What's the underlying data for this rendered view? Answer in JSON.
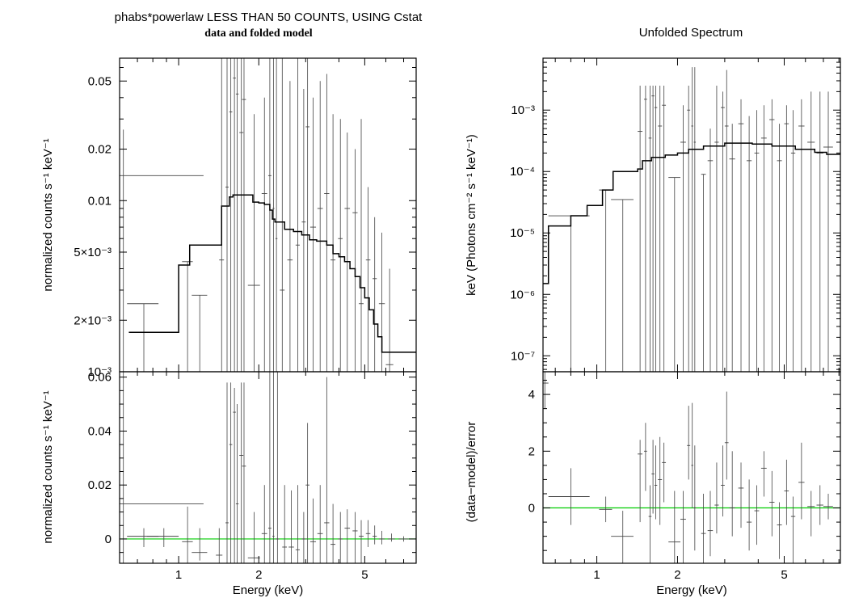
{
  "figure": {
    "left_title": "phabs*powerlaw LESS THAN 50 COUNTS, USING Cstat",
    "left_subtitle": "data and folded model",
    "right_title": "Unfolded Spectrum",
    "colors": {
      "axes": "#000000",
      "data": "#444444",
      "model": "#000000",
      "zero_line": "#00cc00"
    }
  },
  "chart_data": [
    {
      "panel": "left-top",
      "type": "line",
      "xlabel": "",
      "ylabel": "normalized counts s⁻¹ keV⁻¹",
      "xscale": "log",
      "yscale": "log",
      "xlim": [
        0.6,
        7.8
      ],
      "ylim": [
        0.001,
        0.068
      ],
      "xticks": [
        1,
        2,
        5
      ],
      "xtick_labels": [
        "",
        "",
        ""
      ],
      "yticks": [
        0.001,
        0.002,
        0.005,
        0.01,
        0.02,
        0.05
      ],
      "ytick_labels": [
        "10⁻³",
        "2×10⁻³",
        "5×10⁻³",
        "0.01",
        "0.02",
        "0.05"
      ],
      "model_steps": [
        [
          0.65,
          0.0017
        ],
        [
          0.8,
          0.0017
        ],
        [
          1.0,
          0.0042
        ],
        [
          1.1,
          0.0055
        ],
        [
          1.3,
          0.0055
        ],
        [
          1.45,
          0.0093
        ],
        [
          1.55,
          0.0105
        ],
        [
          1.6,
          0.0108
        ],
        [
          1.7,
          0.0108
        ],
        [
          1.8,
          0.0108
        ],
        [
          1.9,
          0.0098
        ],
        [
          2.0,
          0.0097
        ],
        [
          2.1,
          0.0095
        ],
        [
          2.2,
          0.0088
        ],
        [
          2.25,
          0.0078
        ],
        [
          2.3,
          0.0075
        ],
        [
          2.5,
          0.0068
        ],
        [
          2.7,
          0.0066
        ],
        [
          2.9,
          0.0063
        ],
        [
          3.1,
          0.0059
        ],
        [
          3.3,
          0.0058
        ],
        [
          3.6,
          0.0055
        ],
        [
          3.8,
          0.0049
        ],
        [
          4.0,
          0.0047
        ],
        [
          4.2,
          0.0044
        ],
        [
          4.4,
          0.004
        ],
        [
          4.6,
          0.0036
        ],
        [
          4.8,
          0.0031
        ],
        [
          5.0,
          0.0027
        ],
        [
          5.2,
          0.0023
        ],
        [
          5.4,
          0.0019
        ],
        [
          5.6,
          0.0016
        ],
        [
          5.8,
          0.0013
        ],
        [
          6.1,
          0.0013
        ]
      ],
      "points": [
        [
          0.62,
          0.62,
          0.014,
          0.001,
          0.026
        ],
        [
          0.74,
          0.1,
          0.0025,
          0.001,
          0.0025
        ],
        [
          1.08,
          0.05,
          0.0044,
          0.001,
          0.0044
        ],
        [
          1.2,
          0.08,
          0.0028,
          0.001,
          0.0028
        ],
        [
          1.45,
          0.03,
          0.0045,
          0.001,
          0.068
        ],
        [
          1.52,
          0.02,
          0.012,
          0.001,
          0.068
        ],
        [
          1.57,
          0.02,
          0.033,
          0.001,
          0.068
        ],
        [
          1.62,
          0.02,
          0.052,
          0.001,
          0.068
        ],
        [
          1.66,
          0.02,
          0.042,
          0.001,
          0.068
        ],
        [
          1.72,
          0.03,
          0.025,
          0.001,
          0.068
        ],
        [
          1.76,
          0.03,
          0.039,
          0.001,
          0.068
        ],
        [
          1.92,
          0.1,
          0.0032,
          0.001,
          0.032
        ],
        [
          2.1,
          0.05,
          0.011,
          0.001,
          0.04
        ],
        [
          2.2,
          0.03,
          0.014,
          0.001,
          0.068
        ],
        [
          2.27,
          0.02,
          0.009,
          0.001,
          0.068
        ],
        [
          2.33,
          0.02,
          0.006,
          0.001,
          0.068
        ],
        [
          2.45,
          0.05,
          0.003,
          0.001,
          0.068
        ],
        [
          2.62,
          0.06,
          0.0045,
          0.001,
          0.05
        ],
        [
          2.8,
          0.05,
          0.0055,
          0.001,
          0.068
        ],
        [
          2.95,
          0.05,
          0.0075,
          0.001,
          0.045
        ],
        [
          3.05,
          0.05,
          0.027,
          0.001,
          0.068
        ],
        [
          3.2,
          0.08,
          0.007,
          0.001,
          0.04
        ],
        [
          3.4,
          0.08,
          0.009,
          0.001,
          0.05
        ],
        [
          3.6,
          0.08,
          0.011,
          0.001,
          0.055
        ],
        [
          3.8,
          0.08,
          0.0045,
          0.001,
          0.032
        ],
        [
          4.05,
          0.08,
          0.006,
          0.001,
          0.03
        ],
        [
          4.3,
          0.1,
          0.009,
          0.001,
          0.025
        ],
        [
          4.6,
          0.1,
          0.0085,
          0.001,
          0.02
        ],
        [
          4.85,
          0.1,
          0.0025,
          0.001,
          0.03
        ],
        [
          5.15,
          0.1,
          0.0045,
          0.001,
          0.012
        ],
        [
          5.45,
          0.1,
          0.0035,
          0.001,
          0.008
        ],
        [
          5.8,
          0.15,
          0.0025,
          0.001,
          0.0065
        ],
        [
          6.2,
          0.2,
          0.0011,
          0.001,
          0.004
        ]
      ]
    },
    {
      "panel": "left-bottom",
      "type": "scatter",
      "xlabel": "Energy (keV)",
      "ylabel": "normalized counts s⁻¹ keV⁻¹",
      "xscale": "log",
      "yscale": "linear",
      "xlim": [
        0.6,
        7.8
      ],
      "ylim": [
        -0.009,
        0.062
      ],
      "xticks": [
        1,
        2,
        5
      ],
      "xtick_labels": [
        "1",
        "2",
        "5"
      ],
      "yticks": [
        0,
        0.02,
        0.04,
        0.06
      ],
      "ytick_labels": [
        "0",
        "0.02",
        "0.04",
        "0.06"
      ],
      "zero_line": 0,
      "points": [
        [
          0.62,
          0.62,
          0.013,
          -0.009,
          0.062
        ],
        [
          0.74,
          0.1,
          0.001,
          -0.003,
          0.004
        ],
        [
          0.88,
          0.12,
          0.001,
          -0.003,
          0.004
        ],
        [
          1.08,
          0.05,
          -0.001,
          -0.009,
          0.012
        ],
        [
          1.2,
          0.08,
          -0.005,
          -0.008,
          0.004
        ],
        [
          1.42,
          0.04,
          -0.006,
          -0.009,
          0.004
        ],
        [
          1.52,
          0.02,
          0.006,
          -0.009,
          0.058
        ],
        [
          1.57,
          0.02,
          0.035,
          -0.009,
          0.058
        ],
        [
          1.62,
          0.02,
          0.047,
          -0.009,
          0.056
        ],
        [
          1.66,
          0.02,
          0.013,
          -0.009,
          0.05
        ],
        [
          1.72,
          0.03,
          0.031,
          -0.009,
          0.058
        ],
        [
          1.76,
          0.03,
          0.027,
          -0.009,
          0.058
        ],
        [
          1.92,
          0.1,
          -0.007,
          -0.009,
          0.01
        ],
        [
          2.1,
          0.05,
          0.002,
          -0.009,
          0.02
        ],
        [
          2.2,
          0.03,
          0.004,
          -0.009,
          0.062
        ],
        [
          2.27,
          0.02,
          0.001,
          -0.009,
          0.062
        ],
        [
          2.35,
          0.03,
          0.0,
          -0.009,
          0.062
        ],
        [
          2.5,
          0.05,
          -0.003,
          -0.009,
          0.02
        ],
        [
          2.65,
          0.06,
          -0.003,
          -0.009,
          0.018
        ],
        [
          2.8,
          0.05,
          -0.004,
          -0.009,
          0.02
        ],
        [
          2.95,
          0.05,
          0.0,
          -0.009,
          0.01
        ],
        [
          3.05,
          0.05,
          0.02,
          -0.009,
          0.043
        ],
        [
          3.2,
          0.08,
          -0.001,
          -0.009,
          0.015
        ],
        [
          3.4,
          0.08,
          0.002,
          -0.009,
          0.02
        ],
        [
          3.6,
          0.08,
          0.006,
          -0.009,
          0.06
        ],
        [
          3.8,
          0.08,
          -0.002,
          -0.009,
          0.013
        ],
        [
          4.05,
          0.08,
          0.0,
          -0.009,
          0.01
        ],
        [
          4.3,
          0.1,
          0.004,
          -0.009,
          0.011
        ],
        [
          4.6,
          0.1,
          0.003,
          -0.009,
          0.01
        ],
        [
          4.85,
          0.1,
          0.001,
          -0.009,
          0.007
        ],
        [
          5.15,
          0.1,
          0.002,
          -0.003,
          0.007
        ],
        [
          5.45,
          0.1,
          0.001,
          -0.002,
          0.005
        ],
        [
          5.8,
          0.15,
          0.0,
          -0.002,
          0.003
        ],
        [
          6.3,
          0.2,
          0.0,
          -0.001,
          0.002
        ],
        [
          7.0,
          0.3,
          0.0,
          -0.001,
          0.001
        ]
      ]
    },
    {
      "panel": "right-top",
      "type": "line",
      "title": "Unfolded Spectrum",
      "xlabel": "",
      "ylabel": "keV (Photons cm⁻² s⁻¹ keV⁻¹)",
      "xscale": "log",
      "yscale": "log",
      "xlim": [
        0.63,
        8.1
      ],
      "ylim": [
        5.5e-08,
        0.007
      ],
      "xticks": [
        1,
        2,
        5
      ],
      "xtick_labels": [
        "",
        "",
        ""
      ],
      "yticks": [
        1e-07,
        1e-06,
        1e-05,
        0.0001,
        0.001
      ],
      "ytick_labels": [
        "10⁻⁷",
        "10⁻⁶",
        "10⁻⁵",
        "10⁻⁴",
        "10⁻³"
      ],
      "model_steps": [
        [
          0.63,
          1.5e-06
        ],
        [
          0.66,
          1.3e-05
        ],
        [
          0.8,
          1.9e-05
        ],
        [
          0.92,
          2.8e-05
        ],
        [
          1.05,
          5e-05
        ],
        [
          1.15,
          0.0001
        ],
        [
          1.42,
          0.00011
        ],
        [
          1.48,
          0.00015
        ],
        [
          1.6,
          0.00017
        ],
        [
          1.8,
          0.000185
        ],
        [
          2.0,
          0.0002
        ],
        [
          2.2,
          0.00023
        ],
        [
          2.5,
          0.00026
        ],
        [
          3.0,
          0.00029
        ],
        [
          3.8,
          0.00028
        ],
        [
          4.5,
          0.00026
        ],
        [
          5.5,
          0.00023
        ],
        [
          6.5,
          0.000205
        ],
        [
          7.2,
          0.00019
        ],
        [
          8.1,
          0.00019
        ]
      ],
      "points": [
        [
          0.63,
          0.02,
          8e-05,
          5.5e-08,
          5e-05
        ],
        [
          0.8,
          0.14,
          1.9e-05,
          5.5e-08,
          1.9e-05
        ],
        [
          1.08,
          0.06,
          5e-05,
          5.5e-08,
          5e-05
        ],
        [
          1.25,
          0.12,
          3.5e-05,
          5.5e-08,
          3.5e-05
        ],
        [
          1.45,
          0.03,
          0.00045,
          5.5e-08,
          0.0025
        ],
        [
          1.52,
          0.02,
          0.0015,
          5.5e-08,
          0.0025
        ],
        [
          1.58,
          0.02,
          0.00035,
          5.5e-08,
          0.0025
        ],
        [
          1.62,
          0.02,
          0.0017,
          5.5e-08,
          0.0025
        ],
        [
          1.66,
          0.02,
          0.0011,
          5.5e-08,
          0.0025
        ],
        [
          1.72,
          0.03,
          0.00055,
          5.5e-08,
          0.0025
        ],
        [
          1.78,
          0.03,
          0.0012,
          5.5e-08,
          0.0025
        ],
        [
          1.95,
          0.1,
          8e-05,
          5.5e-08,
          8e-05
        ],
        [
          2.1,
          0.05,
          0.0003,
          5.5e-08,
          0.0012
        ],
        [
          2.2,
          0.03,
          0.001,
          5.5e-08,
          0.0025
        ],
        [
          2.27,
          0.02,
          0.00055,
          5.5e-08,
          0.005
        ],
        [
          2.32,
          0.02,
          0.0003,
          5.5e-08,
          0.005
        ],
        [
          2.5,
          0.05,
          9e-05,
          5.5e-08,
          9e-05
        ],
        [
          2.65,
          0.06,
          0.00015,
          5.5e-08,
          0.0005
        ],
        [
          2.8,
          0.05,
          0.0003,
          5.5e-08,
          0.0025
        ],
        [
          2.95,
          0.05,
          0.0011,
          5.5e-08,
          0.002
        ],
        [
          3.05,
          0.05,
          0.00055,
          5.5e-08,
          0.0045
        ],
        [
          3.2,
          0.08,
          0.00016,
          5.5e-08,
          0.0006
        ],
        [
          3.45,
          0.08,
          0.0006,
          5.5e-08,
          0.0015
        ],
        [
          3.7,
          0.08,
          0.00015,
          5.5e-08,
          0.0008
        ],
        [
          3.95,
          0.08,
          0.0002,
          5.5e-08,
          0.001
        ],
        [
          4.2,
          0.1,
          0.00035,
          5.5e-08,
          0.0012
        ],
        [
          4.5,
          0.1,
          0.0007,
          5.5e-08,
          0.0015
        ],
        [
          4.8,
          0.1,
          0.00015,
          5.5e-08,
          0.0006
        ],
        [
          5.1,
          0.1,
          0.0006,
          5.5e-08,
          0.0012
        ],
        [
          5.4,
          0.1,
          0.0002,
          5.5e-08,
          0.001
        ],
        [
          5.8,
          0.15,
          0.00055,
          5.5e-08,
          0.0015
        ],
        [
          6.3,
          0.2,
          0.0003,
          5.5e-08,
          0.002
        ],
        [
          6.8,
          0.2,
          0.0002,
          5.5e-08,
          0.002
        ],
        [
          7.3,
          0.3,
          0.00025,
          5.5e-08,
          0.002
        ]
      ]
    },
    {
      "panel": "right-bottom",
      "type": "scatter",
      "xlabel": "Energy (keV)",
      "ylabel": "(data−model)/error",
      "xscale": "log",
      "yscale": "linear",
      "xlim": [
        0.63,
        8.1
      ],
      "ylim": [
        -1.95,
        4.8
      ],
      "xticks": [
        1,
        2,
        5
      ],
      "xtick_labels": [
        "1",
        "2",
        "5"
      ],
      "yticks": [
        0,
        2,
        4
      ],
      "ytick_labels": [
        "0",
        "2",
        "4"
      ],
      "zero_line": 0,
      "points": [
        [
          0.64,
          0.02,
          4.4,
          3.5,
          4.8
        ],
        [
          0.8,
          0.14,
          0.4,
          -0.6,
          1.4
        ],
        [
          1.08,
          0.06,
          -0.05,
          -0.5,
          0.4
        ],
        [
          1.25,
          0.12,
          -1.0,
          -1.95,
          -0.1
        ],
        [
          1.45,
          0.03,
          1.9,
          -0.5,
          2.4
        ],
        [
          1.52,
          0.02,
          2.0,
          0.6,
          3.0
        ],
        [
          1.58,
          0.02,
          -0.3,
          -1.95,
          0.8
        ],
        [
          1.62,
          0.02,
          1.2,
          -0.2,
          2.4
        ],
        [
          1.66,
          0.02,
          0.8,
          -0.4,
          2.2
        ],
        [
          1.72,
          0.03,
          1.0,
          -0.6,
          2.5
        ],
        [
          1.78,
          0.03,
          1.6,
          0.2,
          2.3
        ],
        [
          1.95,
          0.1,
          -1.2,
          -1.95,
          0.6
        ],
        [
          2.1,
          0.05,
          -0.4,
          -1.95,
          0.6
        ],
        [
          2.2,
          0.03,
          2.2,
          1.0,
          3.6
        ],
        [
          2.27,
          0.02,
          1.5,
          0.0,
          3.7
        ],
        [
          2.32,
          0.02,
          0.0,
          -1.5,
          2.2
        ],
        [
          2.5,
          0.05,
          -0.9,
          -1.95,
          0.5
        ],
        [
          2.65,
          0.06,
          -0.8,
          -1.7,
          0.6
        ],
        [
          2.8,
          0.05,
          0.1,
          -0.9,
          1.6
        ],
        [
          2.95,
          0.05,
          0.8,
          -0.3,
          2.2
        ],
        [
          3.05,
          0.05,
          2.3,
          1.0,
          4.1
        ],
        [
          3.2,
          0.08,
          0.0,
          -1.0,
          2.0
        ],
        [
          3.45,
          0.08,
          0.7,
          -0.7,
          1.6
        ],
        [
          3.7,
          0.08,
          -0.5,
          -1.5,
          1.0
        ],
        [
          3.95,
          0.08,
          -0.1,
          -1.3,
          0.8
        ],
        [
          4.2,
          0.1,
          1.4,
          0.4,
          2.0
        ],
        [
          4.5,
          0.1,
          0.2,
          -1.0,
          1.3
        ],
        [
          4.8,
          0.1,
          -0.6,
          -1.8,
          0.2
        ],
        [
          5.1,
          0.1,
          0.6,
          -0.6,
          1.7
        ],
        [
          5.4,
          0.1,
          -0.3,
          -1.95,
          0.4
        ],
        [
          5.8,
          0.15,
          0.9,
          -0.4,
          2.3
        ],
        [
          6.3,
          0.2,
          0.05,
          -1.0,
          0.6
        ],
        [
          6.8,
          0.2,
          0.1,
          -0.6,
          0.8
        ],
        [
          7.3,
          0.3,
          0.05,
          -0.4,
          0.5
        ]
      ]
    }
  ]
}
